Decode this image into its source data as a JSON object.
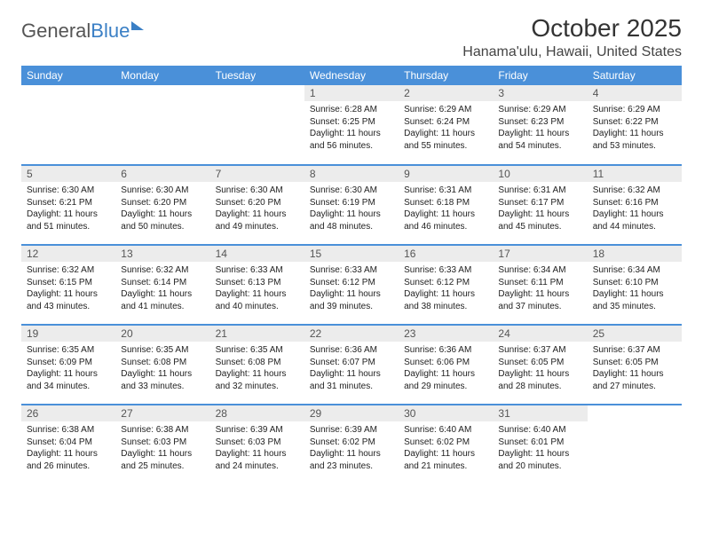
{
  "logo": {
    "text1": "General",
    "text2": "Blue"
  },
  "title": "October 2025",
  "location": "Hanama'ulu, Hawaii, United States",
  "colors": {
    "header_bg": "#4a90d9",
    "header_text": "#ffffff",
    "daynum_bg": "#ececec",
    "week_divider": "#4a90d9",
    "body_text": "#222222",
    "logo_gray": "#555555",
    "logo_blue": "#3a7fc5"
  },
  "day_labels": [
    "Sunday",
    "Monday",
    "Tuesday",
    "Wednesday",
    "Thursday",
    "Friday",
    "Saturday"
  ],
  "weeks": [
    [
      {
        "n": "",
        "sr": "",
        "ss": "",
        "dl": ""
      },
      {
        "n": "",
        "sr": "",
        "ss": "",
        "dl": ""
      },
      {
        "n": "",
        "sr": "",
        "ss": "",
        "dl": ""
      },
      {
        "n": "1",
        "sr": "Sunrise: 6:28 AM",
        "ss": "Sunset: 6:25 PM",
        "dl": "Daylight: 11 hours and 56 minutes."
      },
      {
        "n": "2",
        "sr": "Sunrise: 6:29 AM",
        "ss": "Sunset: 6:24 PM",
        "dl": "Daylight: 11 hours and 55 minutes."
      },
      {
        "n": "3",
        "sr": "Sunrise: 6:29 AM",
        "ss": "Sunset: 6:23 PM",
        "dl": "Daylight: 11 hours and 54 minutes."
      },
      {
        "n": "4",
        "sr": "Sunrise: 6:29 AM",
        "ss": "Sunset: 6:22 PM",
        "dl": "Daylight: 11 hours and 53 minutes."
      }
    ],
    [
      {
        "n": "5",
        "sr": "Sunrise: 6:30 AM",
        "ss": "Sunset: 6:21 PM",
        "dl": "Daylight: 11 hours and 51 minutes."
      },
      {
        "n": "6",
        "sr": "Sunrise: 6:30 AM",
        "ss": "Sunset: 6:20 PM",
        "dl": "Daylight: 11 hours and 50 minutes."
      },
      {
        "n": "7",
        "sr": "Sunrise: 6:30 AM",
        "ss": "Sunset: 6:20 PM",
        "dl": "Daylight: 11 hours and 49 minutes."
      },
      {
        "n": "8",
        "sr": "Sunrise: 6:30 AM",
        "ss": "Sunset: 6:19 PM",
        "dl": "Daylight: 11 hours and 48 minutes."
      },
      {
        "n": "9",
        "sr": "Sunrise: 6:31 AM",
        "ss": "Sunset: 6:18 PM",
        "dl": "Daylight: 11 hours and 46 minutes."
      },
      {
        "n": "10",
        "sr": "Sunrise: 6:31 AM",
        "ss": "Sunset: 6:17 PM",
        "dl": "Daylight: 11 hours and 45 minutes."
      },
      {
        "n": "11",
        "sr": "Sunrise: 6:32 AM",
        "ss": "Sunset: 6:16 PM",
        "dl": "Daylight: 11 hours and 44 minutes."
      }
    ],
    [
      {
        "n": "12",
        "sr": "Sunrise: 6:32 AM",
        "ss": "Sunset: 6:15 PM",
        "dl": "Daylight: 11 hours and 43 minutes."
      },
      {
        "n": "13",
        "sr": "Sunrise: 6:32 AM",
        "ss": "Sunset: 6:14 PM",
        "dl": "Daylight: 11 hours and 41 minutes."
      },
      {
        "n": "14",
        "sr": "Sunrise: 6:33 AM",
        "ss": "Sunset: 6:13 PM",
        "dl": "Daylight: 11 hours and 40 minutes."
      },
      {
        "n": "15",
        "sr": "Sunrise: 6:33 AM",
        "ss": "Sunset: 6:12 PM",
        "dl": "Daylight: 11 hours and 39 minutes."
      },
      {
        "n": "16",
        "sr": "Sunrise: 6:33 AM",
        "ss": "Sunset: 6:12 PM",
        "dl": "Daylight: 11 hours and 38 minutes."
      },
      {
        "n": "17",
        "sr": "Sunrise: 6:34 AM",
        "ss": "Sunset: 6:11 PM",
        "dl": "Daylight: 11 hours and 37 minutes."
      },
      {
        "n": "18",
        "sr": "Sunrise: 6:34 AM",
        "ss": "Sunset: 6:10 PM",
        "dl": "Daylight: 11 hours and 35 minutes."
      }
    ],
    [
      {
        "n": "19",
        "sr": "Sunrise: 6:35 AM",
        "ss": "Sunset: 6:09 PM",
        "dl": "Daylight: 11 hours and 34 minutes."
      },
      {
        "n": "20",
        "sr": "Sunrise: 6:35 AM",
        "ss": "Sunset: 6:08 PM",
        "dl": "Daylight: 11 hours and 33 minutes."
      },
      {
        "n": "21",
        "sr": "Sunrise: 6:35 AM",
        "ss": "Sunset: 6:08 PM",
        "dl": "Daylight: 11 hours and 32 minutes."
      },
      {
        "n": "22",
        "sr": "Sunrise: 6:36 AM",
        "ss": "Sunset: 6:07 PM",
        "dl": "Daylight: 11 hours and 31 minutes."
      },
      {
        "n": "23",
        "sr": "Sunrise: 6:36 AM",
        "ss": "Sunset: 6:06 PM",
        "dl": "Daylight: 11 hours and 29 minutes."
      },
      {
        "n": "24",
        "sr": "Sunrise: 6:37 AM",
        "ss": "Sunset: 6:05 PM",
        "dl": "Daylight: 11 hours and 28 minutes."
      },
      {
        "n": "25",
        "sr": "Sunrise: 6:37 AM",
        "ss": "Sunset: 6:05 PM",
        "dl": "Daylight: 11 hours and 27 minutes."
      }
    ],
    [
      {
        "n": "26",
        "sr": "Sunrise: 6:38 AM",
        "ss": "Sunset: 6:04 PM",
        "dl": "Daylight: 11 hours and 26 minutes."
      },
      {
        "n": "27",
        "sr": "Sunrise: 6:38 AM",
        "ss": "Sunset: 6:03 PM",
        "dl": "Daylight: 11 hours and 25 minutes."
      },
      {
        "n": "28",
        "sr": "Sunrise: 6:39 AM",
        "ss": "Sunset: 6:03 PM",
        "dl": "Daylight: 11 hours and 24 minutes."
      },
      {
        "n": "29",
        "sr": "Sunrise: 6:39 AM",
        "ss": "Sunset: 6:02 PM",
        "dl": "Daylight: 11 hours and 23 minutes."
      },
      {
        "n": "30",
        "sr": "Sunrise: 6:40 AM",
        "ss": "Sunset: 6:02 PM",
        "dl": "Daylight: 11 hours and 21 minutes."
      },
      {
        "n": "31",
        "sr": "Sunrise: 6:40 AM",
        "ss": "Sunset: 6:01 PM",
        "dl": "Daylight: 11 hours and 20 minutes."
      },
      {
        "n": "",
        "sr": "",
        "ss": "",
        "dl": ""
      }
    ]
  ]
}
